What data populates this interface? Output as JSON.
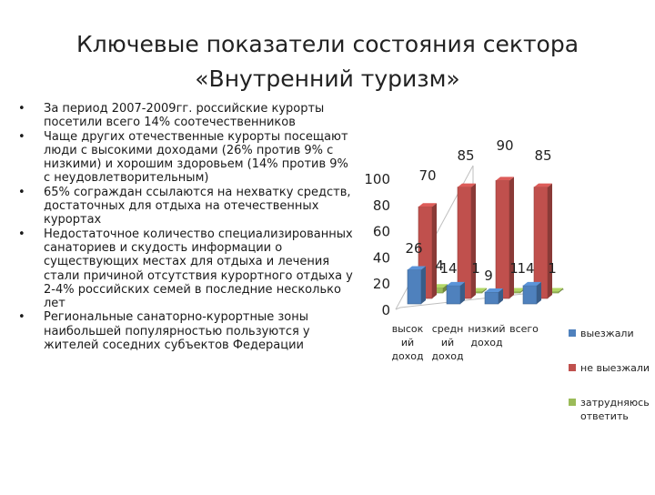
{
  "title_line1": "Ключевые показатели состояния сектора",
  "title_line2": "«Внутренний туризм»",
  "bullets": [
    "За период 2007-2009гг. российские курорты посетили всего 14% соотечественников",
    "Чаще других отечественные курорты посещают люди с высокими доходами (26% против 9% с низкими) и хорошим здоровьем (14% против 9% с неудовлетворительным)",
    "65% сограждан ссылаются на нехватку средств, достаточных для отдыха на отечественных курортах",
    "Недостаточное количество специализированных санаториев и скудость информации о существующих местах для отдыха и лечения стали причиной отсутствия курортного отдыха у 2-4% российских семей в последние несколько лет",
    "Региональные санаторно-курортные зоны наибольшей популярностью пользуются у жителей соседних субъектов Федерации"
  ],
  "bullet_symbol": "•",
  "chart_data": {
    "type": "bar",
    "categories": [
      [
        "высок",
        "ий",
        "доход"
      ],
      [
        "средн",
        "ий",
        "доход"
      ],
      [
        "низкий",
        "доход"
      ],
      [
        "всего"
      ]
    ],
    "series": [
      {
        "name": "выезжали",
        "values": [
          26,
          14,
          9,
          14
        ],
        "color": "#4f81bd"
      },
      {
        "name": "не выезжали",
        "values": [
          70,
          85,
          90,
          85
        ],
        "color": "#c0504d"
      },
      {
        "name": "затрудняюсь ответить",
        "values": [
          4,
          1,
          1,
          1
        ],
        "color": "#9bbb59"
      }
    ],
    "yticks": [
      "0",
      "20",
      "40",
      "60",
      "80",
      "100"
    ],
    "ylim": [
      0,
      100
    ],
    "value_labels": [
      [
        "26",
        "14",
        "9",
        "14"
      ],
      [
        "70",
        "85",
        "90",
        "85"
      ],
      [
        "4",
        "1",
        "1",
        "1"
      ]
    ],
    "legend_position": "right"
  }
}
